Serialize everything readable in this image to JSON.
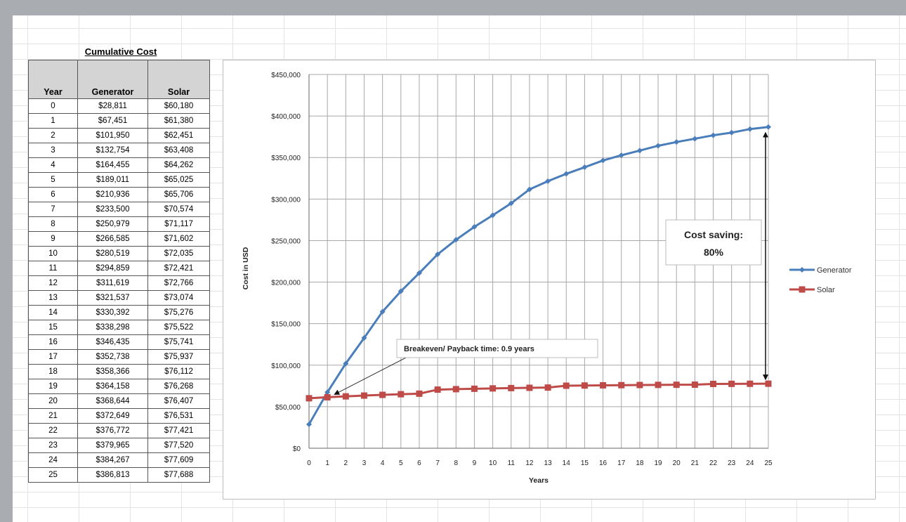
{
  "table": {
    "title": "Cumulative Cost",
    "headers": [
      "Year",
      "Generator",
      "Solar"
    ],
    "rows": [
      [
        "0",
        "$28,811",
        "$60,180"
      ],
      [
        "1",
        "$67,451",
        "$61,380"
      ],
      [
        "2",
        "$101,950",
        "$62,451"
      ],
      [
        "3",
        "$132,754",
        "$63,408"
      ],
      [
        "4",
        "$164,455",
        "$64,262"
      ],
      [
        "5",
        "$189,011",
        "$65,025"
      ],
      [
        "6",
        "$210,936",
        "$65,706"
      ],
      [
        "7",
        "$233,500",
        "$70,574"
      ],
      [
        "8",
        "$250,979",
        "$71,117"
      ],
      [
        "9",
        "$266,585",
        "$71,602"
      ],
      [
        "10",
        "$280,519",
        "$72,035"
      ],
      [
        "11",
        "$294,859",
        "$72,421"
      ],
      [
        "12",
        "$311,619",
        "$72,766"
      ],
      [
        "13",
        "$321,537",
        "$73,074"
      ],
      [
        "14",
        "$330,392",
        "$75,276"
      ],
      [
        "15",
        "$338,298",
        "$75,522"
      ],
      [
        "16",
        "$346,435",
        "$75,741"
      ],
      [
        "17",
        "$352,738",
        "$75,937"
      ],
      [
        "18",
        "$358,366",
        "$76,112"
      ],
      [
        "19",
        "$364,158",
        "$76,268"
      ],
      [
        "20",
        "$368,644",
        "$76,407"
      ],
      [
        "21",
        "$372,649",
        "$76,531"
      ],
      [
        "22",
        "$376,772",
        "$77,421"
      ],
      [
        "23",
        "$379,965",
        "$77,520"
      ],
      [
        "24",
        "$384,267",
        "$77,609"
      ],
      [
        "25",
        "$386,813",
        "$77,688"
      ]
    ]
  },
  "chart_data": {
    "type": "line",
    "xlabel": "Years",
    "ylabel": "Cost in USD",
    "x": [
      0,
      1,
      2,
      3,
      4,
      5,
      6,
      7,
      8,
      9,
      10,
      11,
      12,
      13,
      14,
      15,
      16,
      17,
      18,
      19,
      20,
      21,
      22,
      23,
      24,
      25
    ],
    "ylim": [
      0,
      450000
    ],
    "y_ticks": [
      0,
      50000,
      100000,
      150000,
      200000,
      250000,
      300000,
      350000,
      400000,
      450000
    ],
    "y_tick_labels": [
      "$0",
      "$50,000",
      "$100,000",
      "$150,000",
      "$200,000",
      "$250,000",
      "$300,000",
      "$350,000",
      "$400,000",
      "$450,000"
    ],
    "grid": true,
    "legend_position": "right",
    "series": [
      {
        "name": "Generator",
        "color": "#4a7ebb",
        "marker": "diamond",
        "values": [
          28811,
          67451,
          101950,
          132754,
          164455,
          189011,
          210936,
          233500,
          250979,
          266585,
          280519,
          294859,
          311619,
          321537,
          330392,
          338298,
          346435,
          352738,
          358366,
          364158,
          368644,
          372649,
          376772,
          379965,
          384267,
          386813
        ]
      },
      {
        "name": "Solar",
        "color": "#be4b48",
        "marker": "square",
        "values": [
          60180,
          61380,
          62451,
          63408,
          64262,
          65025,
          65706,
          70574,
          71117,
          71602,
          72035,
          72421,
          72766,
          73074,
          75276,
          75522,
          75741,
          75937,
          76112,
          76268,
          76407,
          76531,
          77421,
          77520,
          77609,
          77688
        ]
      }
    ],
    "annotations": {
      "breakeven": {
        "text": "Breakeven/ Payback time: 0.9 years",
        "x": 1,
        "y": 61380
      },
      "saving": {
        "line1": "Cost saving:",
        "line2": "80%",
        "x": 25,
        "y_from": 77688,
        "y_to": 386813
      }
    }
  }
}
